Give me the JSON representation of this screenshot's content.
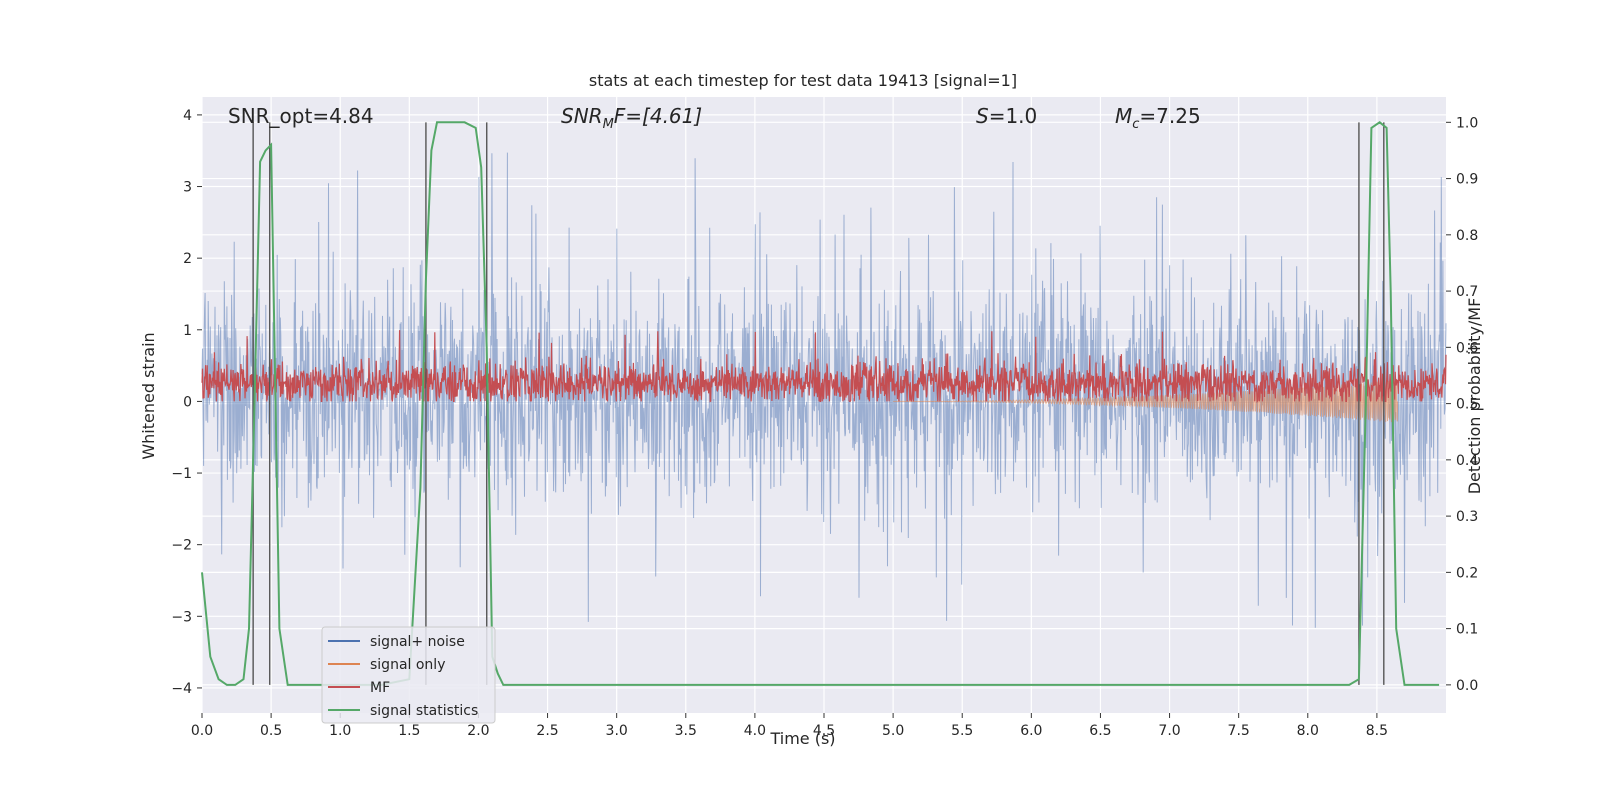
{
  "chart_data": {
    "type": "line",
    "title": "stats at each timestep for test data 19413 [signal=1]",
    "xlabel": "Time (s)",
    "ylabel": "Whitened strain",
    "y2label": "Detection probability/MF",
    "xlim": [
      0.0,
      9.0
    ],
    "ylim": [
      -4.35,
      4.25
    ],
    "y2lim": [
      -0.05,
      1.045
    ],
    "xticks": [
      "0.0",
      "0.5",
      "1.0",
      "1.5",
      "2.0",
      "2.5",
      "3.0",
      "3.5",
      "4.0",
      "4.5",
      "5.0",
      "5.5",
      "6.0",
      "6.5",
      "7.0",
      "7.5",
      "8.0",
      "8.5"
    ],
    "yticks": [
      "4",
      "3",
      "2",
      "1",
      "0",
      "−1",
      "−2",
      "−3",
      "−4"
    ],
    "y2ticks": [
      "1.0",
      "0.9",
      "0.8",
      "0.7",
      "0.6",
      "0.5",
      "0.4",
      "0.3",
      "0.2",
      "0.1",
      "0.0"
    ],
    "grid": true,
    "legend_position": "lower-left",
    "annotations": {
      "snr_opt": "SNR_opt=4.84",
      "snr_mf_base": "SNR",
      "snr_mf_sub": "M",
      "snr_mf_rest": "F=[4.61]",
      "s_label": "S",
      "s_rest": "=1.0",
      "mc_base": "M",
      "mc_sub": "c",
      "mc_rest": "=7.25"
    },
    "series": [
      {
        "name": "signal+ noise",
        "color": "#4c72b0",
        "kind": "noise",
        "description_values": {
          "band_low": -1.8,
          "band_high": 2.2,
          "max": 3.5,
          "min": -4.0
        }
      },
      {
        "name": "signal only",
        "color": "#dd8452",
        "kind": "chirp",
        "x_start": 5.0,
        "x_end": 8.65,
        "amp_end": 0.3
      },
      {
        "name": "MF",
        "color": "#c44e52",
        "kind": "mf",
        "base": 0.25,
        "spread_low": 0.0,
        "spread_high": 0.85
      },
      {
        "name": "signal statistics",
        "color": "#55a868",
        "axis": "right",
        "x": [
          0.0,
          0.06,
          0.12,
          0.18,
          0.24,
          0.3,
          0.34,
          0.38,
          0.42,
          0.46,
          0.5,
          0.56,
          0.62,
          0.7,
          1.0,
          1.3,
          1.5,
          1.58,
          1.62,
          1.66,
          1.7,
          1.8,
          1.9,
          1.98,
          2.02,
          2.06,
          2.1,
          2.14,
          2.18,
          2.3,
          3.0,
          4.0,
          5.0,
          6.0,
          7.0,
          8.0,
          8.3,
          8.37,
          8.42,
          8.46,
          8.52,
          8.57,
          8.6,
          8.64,
          8.7,
          8.8,
          8.95
        ],
        "y": [
          0.2,
          0.05,
          0.01,
          0.0,
          0.0,
          0.01,
          0.1,
          0.5,
          0.93,
          0.95,
          0.96,
          0.1,
          0.0,
          0.0,
          0.0,
          0.0,
          0.01,
          0.35,
          0.72,
          0.95,
          1.0,
          1.0,
          1.0,
          0.99,
          0.92,
          0.6,
          0.05,
          0.02,
          0.0,
          0.0,
          0.0,
          0.0,
          0.0,
          0.0,
          0.0,
          0.0,
          0.0,
          0.01,
          0.5,
          0.99,
          1.0,
          0.99,
          0.7,
          0.1,
          0.0,
          0.0,
          0.0
        ]
      }
    ],
    "vertical_lines_x": [
      0.37,
      0.49,
      1.62,
      2.06,
      8.37,
      8.55
    ],
    "vertical_line_color": "#555555"
  }
}
